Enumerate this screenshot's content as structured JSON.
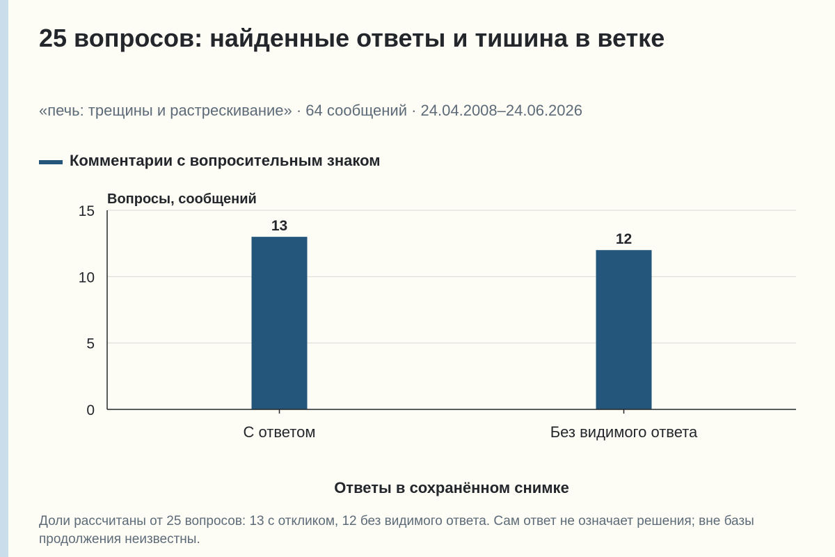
{
  "header": {
    "title": "25 вопросов: найденные ответы и тишина в ветке",
    "subtitle": "«печь: трещины и растрескивание» · 64 сообщений · 24.04.2008–24.06.2026"
  },
  "legend": {
    "label": "Комментарии с вопросительным знаком"
  },
  "footnote": "Доли рассчитаны от 25 вопросов: 13 с откликом, 12 без видимого ответа. Сам ответ не означает решения; вне базы продолжения неизвестны.",
  "colors": {
    "bar": "#24567c",
    "grid": "#d9d9d4",
    "axis": "#23272b"
  },
  "chart_data": {
    "type": "bar",
    "categories": [
      "С ответом",
      "Без видимого ответа"
    ],
    "series": [
      {
        "name": "Комментарии с вопросительным знаком",
        "values": [
          13,
          12
        ]
      }
    ],
    "data_labels": [
      "13",
      "12"
    ],
    "ylabel": "Вопросы, сообщений",
    "xlabel": "Ответы в сохранённом снимке",
    "ylim": [
      0,
      15
    ],
    "yticks": [
      0,
      5,
      10,
      15
    ],
    "grid": true,
    "legend_position": "top-left"
  }
}
